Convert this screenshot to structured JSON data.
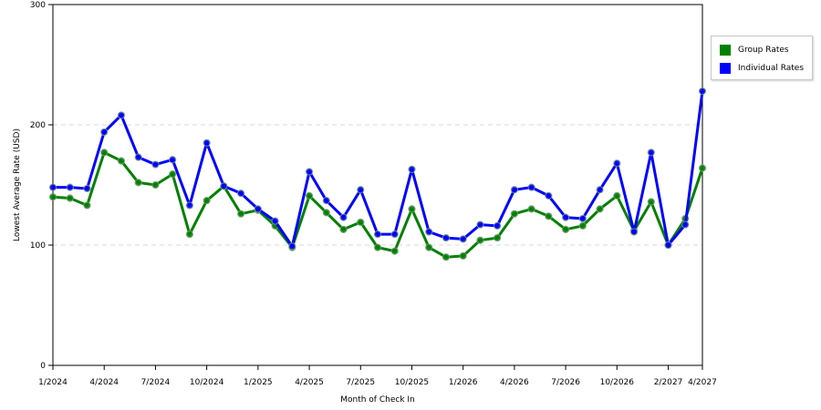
{
  "chart_data": {
    "type": "line",
    "xlabel": "Month of Check In",
    "ylabel": "Lowest Average Rate (USD)",
    "ylim": [
      0,
      300
    ],
    "yticks": [
      "0",
      "100",
      "200",
      "300"
    ],
    "x_tick_labels": [
      {
        "label": "1/2024",
        "index": 0
      },
      {
        "label": "4/2024",
        "index": 3
      },
      {
        "label": "7/2024",
        "index": 6
      },
      {
        "label": "10/2024",
        "index": 9
      },
      {
        "label": "1/2025",
        "index": 12
      },
      {
        "label": "4/2025",
        "index": 15
      },
      {
        "label": "7/2025",
        "index": 18
      },
      {
        "label": "10/2025",
        "index": 21
      },
      {
        "label": "1/2026",
        "index": 24
      },
      {
        "label": "4/2026",
        "index": 27
      },
      {
        "label": "7/2026",
        "index": 30
      },
      {
        "label": "10/2026",
        "index": 33
      },
      {
        "label": "2/2027",
        "index": 36
      },
      {
        "label": "4/2027",
        "index": 38
      }
    ],
    "point_count": 39,
    "grid": true,
    "legend_position": "right",
    "series": [
      {
        "name": "Group Rates",
        "color": "#008000",
        "values": [
          140,
          139,
          133,
          177,
          170,
          152,
          150,
          159,
          109,
          137,
          149,
          126,
          129,
          116,
          98,
          141,
          127,
          113,
          119,
          98,
          95,
          130,
          98,
          90,
          91,
          104,
          106,
          126,
          130,
          124,
          113,
          116,
          130,
          141,
          112,
          136,
          100,
          122,
          164
        ]
      },
      {
        "name": "Individual Rates",
        "color": "#0000ff",
        "values": [
          148,
          148,
          147,
          194,
          208,
          173,
          167,
          171,
          133,
          185,
          149,
          143,
          130,
          120,
          99,
          161,
          137,
          123,
          146,
          109,
          109,
          163,
          111,
          106,
          105,
          117,
          116,
          146,
          148,
          141,
          123,
          122,
          146,
          168,
          111,
          177,
          100,
          117,
          228
        ]
      }
    ]
  }
}
